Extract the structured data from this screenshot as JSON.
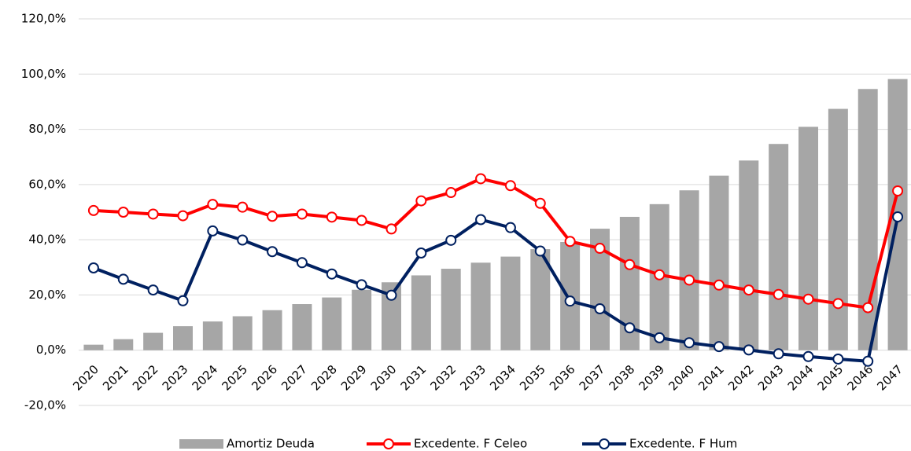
{
  "chart_data": {
    "type": "bar-line",
    "categories": [
      "2020",
      "2021",
      "2022",
      "2023",
      "2024",
      "2025",
      "2026",
      "2027",
      "2028",
      "2029",
      "2030",
      "2031",
      "2032",
      "2033",
      "2034",
      "2035",
      "2036",
      "2037",
      "2038",
      "2039",
      "2040",
      "2041",
      "2042",
      "2043",
      "2044",
      "2045",
      "2046",
      "2047"
    ],
    "series": [
      {
        "name": "Amortiz Deuda",
        "type": "bar",
        "color": "#a6a6a6",
        "values": [
          2.0,
          4.0,
          6.3,
          8.7,
          10.4,
          12.3,
          14.5,
          16.7,
          19.1,
          21.9,
          24.6,
          27.1,
          29.5,
          31.7,
          33.9,
          36.6,
          39.2,
          44.0,
          48.3,
          52.9,
          57.9,
          63.2,
          68.7,
          74.7,
          80.9,
          87.4,
          94.6,
          98.2
        ]
      },
      {
        "name": "Excedente. F Celeo",
        "type": "line",
        "color": "#ff0000",
        "values": [
          50.6,
          50.0,
          49.3,
          48.7,
          52.8,
          51.8,
          48.5,
          49.3,
          48.2,
          47.0,
          43.9,
          54.1,
          57.1,
          62.1,
          59.6,
          53.2,
          39.4,
          36.9,
          31.0,
          27.3,
          25.4,
          23.6,
          21.8,
          20.2,
          18.5,
          16.9,
          15.4,
          57.7
        ]
      },
      {
        "name": "Excedente. F Hum",
        "type": "line",
        "color": "#002060",
        "values": [
          29.8,
          25.7,
          21.8,
          17.9,
          43.2,
          39.9,
          35.7,
          31.7,
          27.6,
          23.7,
          19.9,
          35.2,
          39.8,
          47.3,
          44.4,
          35.9,
          17.8,
          15.0,
          8.1,
          4.5,
          2.7,
          1.3,
          0.1,
          -1.3,
          -2.3,
          -3.2,
          -4.0,
          48.3
        ]
      }
    ],
    "ylim": [
      -20,
      120
    ],
    "yticks": [
      {
        "value": -20,
        "label": "-20,0%"
      },
      {
        "value": 0,
        "label": "0,0%"
      },
      {
        "value": 20,
        "label": "20,0%"
      },
      {
        "value": 40,
        "label": "40,0%"
      },
      {
        "value": 60,
        "label": "60,0%"
      },
      {
        "value": 80,
        "label": "80,0%"
      },
      {
        "value": 100,
        "label": "100,0%"
      },
      {
        "value": 120,
        "label": "120,0%"
      }
    ],
    "grid": true,
    "legend": "bottom"
  }
}
